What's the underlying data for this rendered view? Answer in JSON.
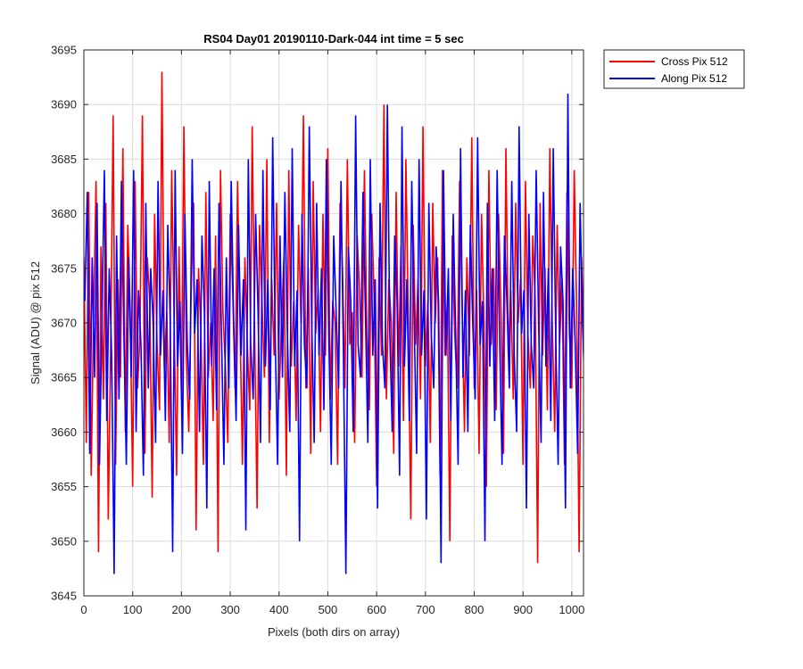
{
  "chart_data": {
    "type": "line",
    "title": "RS04 Day01 20190110-Dark-044 int time = 5 sec",
    "xlabel": "Pixels (both dirs on array)",
    "ylabel": "Signal (ADU) @ pix 512",
    "xlim": [
      0,
      1024
    ],
    "ylim": [
      3645,
      3695
    ],
    "xticks": [
      0,
      100,
      200,
      300,
      400,
      500,
      600,
      700,
      800,
      900,
      1000
    ],
    "yticks": [
      3645,
      3650,
      3655,
      3660,
      3665,
      3670,
      3675,
      3680,
      3685,
      3690,
      3695
    ],
    "grid": true,
    "legend_position": "outside-top-right",
    "series": [
      {
        "name": "Cross Pix 512",
        "color": "#ff0000",
        "x_start": 0,
        "x_step": 5,
        "values": [
          3676,
          3659,
          3682,
          3656,
          3671,
          3683,
          3649,
          3677,
          3663,
          3681,
          3652,
          3668,
          3689,
          3657,
          3674,
          3665,
          3686,
          3660,
          3679,
          3671,
          3655,
          3683,
          3664,
          3669,
          3689,
          3658,
          3676,
          3672,
          3654,
          3680,
          3668,
          3662,
          3693,
          3666,
          3671,
          3659,
          3684,
          3670,
          3656,
          3677,
          3663,
          3688,
          3667,
          3660,
          3673,
          3681,
          3651,
          3675,
          3669,
          3657,
          3682,
          3665,
          3670,
          3661,
          3678,
          3649,
          3684,
          3671,
          3666,
          3659,
          3680,
          3673,
          3664,
          3683,
          3670,
          3657,
          3676,
          3668,
          3662,
          3688,
          3669,
          3653,
          3679,
          3672,
          3665,
          3685,
          3659,
          3674,
          3667,
          3681,
          3663,
          3670,
          3676,
          3656,
          3684,
          3666,
          3672,
          3661,
          3679,
          3670,
          3689,
          3664,
          3675,
          3658,
          3683,
          3669,
          3673,
          3660,
          3680,
          3667,
          3686,
          3663,
          3672,
          3670,
          3657,
          3681,
          3675,
          3664,
          3685,
          3668,
          3671,
          3659,
          3678,
          3673,
          3665,
          3684,
          3669,
          3662,
          3680,
          3672,
          3655,
          3676,
          3667,
          3690,
          3663,
          3674,
          3670,
          3658,
          3682,
          3666,
          3677,
          3661,
          3685,
          3670,
          3652,
          3679,
          3668,
          3674,
          3663,
          3688,
          3666,
          3672,
          3659,
          3681,
          3670,
          3676,
          3656,
          3684,
          3667,
          3672,
          3650,
          3678,
          3669,
          3664,
          3683,
          3672,
          3660,
          3676,
          3667,
          3687,
          3664,
          3673,
          3658,
          3680,
          3670,
          3655,
          3684,
          3668,
          3675,
          3662,
          3680,
          3671,
          3658,
          3686,
          3667,
          3673,
          3663,
          3681,
          3670,
          3674,
          3657,
          3683,
          3669,
          3664,
          3678,
          3672,
          3648,
          3681,
          3667,
          3675,
          3662,
          3686,
          3670,
          3660,
          3679,
          3668,
          3674,
          3657,
          3682,
          3669,
          3664,
          3684,
          3671,
          3649,
          3676,
          3667,
          3673,
          3661,
          3688,
          3669,
          3659,
          3680,
          3671,
          3666,
          3685,
          3662,
          3674,
          3668,
          3652,
          3678,
          3670,
          3664,
          3683,
          3667,
          3673,
          3656,
          3681,
          3669,
          3675,
          3660,
          3687,
          3671,
          3664,
          3679,
          3668,
          3657,
          3684,
          3670,
          3666,
          3688,
          3663,
          3673,
          3659,
          3681,
          3672,
          3669,
          3655,
          3677,
          3667,
          3683,
          3663,
          3672,
          3658,
          3686,
          3670,
          3665,
          3678,
          3669,
          3692,
          3661,
          3693,
          3667,
          3655,
          3680,
          3671,
          3686,
          3664,
          3676,
          3668,
          3654
        ]
      },
      {
        "name": "Along Pix 512",
        "color": "#0000ff",
        "x_start": 2,
        "x_step": 5,
        "values": [
          3672,
          3682,
          3658,
          3676,
          3665,
          3681,
          3657,
          3670,
          3684,
          3661,
          3675,
          3667,
          3647,
          3678,
          3663,
          3683,
          3669,
          3657,
          3676,
          3665,
          3684,
          3660,
          3673,
          3668,
          3656,
          3681,
          3664,
          3675,
          3670,
          3659,
          3683,
          3667,
          3673,
          3661,
          3679,
          3670,
          3649,
          3684,
          3666,
          3672,
          3658,
          3680,
          3668,
          3663,
          3685,
          3669,
          3674,
          3660,
          3678,
          3671,
          3653,
          3683,
          3666,
          3675,
          3662,
          3681,
          3669,
          3657,
          3676,
          3664,
          3683,
          3670,
          3661,
          3679,
          3667,
          3674,
          3651,
          3685,
          3668,
          3663,
          3680,
          3671,
          3659,
          3684,
          3666,
          3674,
          3662,
          3687,
          3669,
          3657,
          3678,
          3665,
          3682,
          3669,
          3660,
          3686,
          3666,
          3673,
          3650,
          3680,
          3668,
          3664,
          3688,
          3670,
          3659,
          3681,
          3667,
          3675,
          3662,
          3685,
          3669,
          3657,
          3678,
          3671,
          3664,
          3683,
          3667,
          3647,
          3677,
          3672,
          3660,
          3689,
          3668,
          3665,
          3682,
          3671,
          3659,
          3685,
          3667,
          3674,
          3653,
          3681,
          3668,
          3664,
          3690,
          3669,
          3660,
          3678,
          3672,
          3656,
          3688,
          3666,
          3674,
          3661,
          3683,
          3670,
          3658,
          3685,
          3667,
          3673,
          3652,
          3681,
          3669,
          3664,
          3677,
          3672,
          3648,
          3684,
          3667,
          3675,
          3661,
          3680,
          3669,
          3657,
          3686,
          3665,
          3673,
          3660,
          3679,
          3670,
          3663,
          3687,
          3668,
          3672,
          3650,
          3681,
          3666,
          3675,
          3661,
          3684,
          3669,
          3657,
          3678,
          3672,
          3664,
          3683,
          3667,
          3660,
          3688,
          3669,
          3673,
          3653,
          3680,
          3668,
          3664,
          3684,
          3670,
          3659,
          3682,
          3666,
          3675,
          3661,
          3686,
          3669,
          3657,
          3677,
          3672,
          3653,
          3691,
          3664,
          3675,
          3668,
          3658,
          3681,
          3670,
          3663,
          3684,
          3667,
          3675,
          3655,
          3680,
          3669,
          3663,
          3686,
          3668,
          3672,
          3660,
          3679,
          3670,
          3666,
          3683,
          3669,
          3657,
          3676,
          3671,
          3664,
          3685,
          3667,
          3673,
          3661,
          3680,
          3670,
          3658,
          3683,
          3668,
          3675,
          3663,
          3686,
          3670,
          3660,
          3678,
          3671,
          3664,
          3684,
          3668,
          3673,
          3657,
          3681,
          3669,
          3665,
          3688,
          3667,
          3673,
          3660,
          3682,
          3670
        ]
      }
    ]
  }
}
